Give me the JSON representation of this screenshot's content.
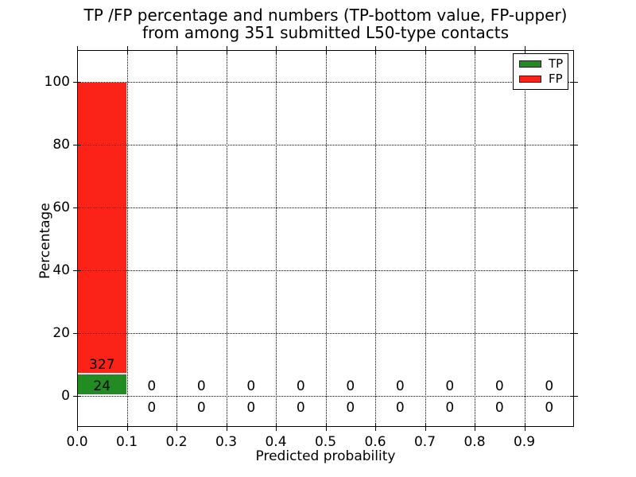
{
  "chart_data": {
    "type": "bar",
    "stacked": true,
    "title_line1": "TP /FP percentage and numbers (TP-bottom value, FP-upper)",
    "title_line2": "from among 351 submitted L50-type contacts",
    "xlabel": "Predicted probability",
    "ylabel": "Percentage",
    "total_contacts": 351,
    "xlim": [
      0.0,
      1.0
    ],
    "ylim": [
      -10,
      110
    ],
    "bin_width": 0.1,
    "x_bin_starts": [
      0.0,
      0.1,
      0.2,
      0.3,
      0.4,
      0.5,
      0.6,
      0.7,
      0.8,
      0.9
    ],
    "series": [
      {
        "name": "TP",
        "color": "#228b22",
        "counts": [
          24,
          0,
          0,
          0,
          0,
          0,
          0,
          0,
          0,
          0
        ],
        "percent_of_total": [
          6.84,
          0,
          0,
          0,
          0,
          0,
          0,
          0,
          0,
          0
        ]
      },
      {
        "name": "FP",
        "color": "#fb2318",
        "counts": [
          327,
          0,
          0,
          0,
          0,
          0,
          0,
          0,
          0,
          0
        ],
        "percent_of_total": [
          93.16,
          0,
          0,
          0,
          0,
          0,
          0,
          0,
          0,
          0
        ]
      }
    ],
    "xtick_values": [
      0.0,
      0.1,
      0.2,
      0.3,
      0.4,
      0.5,
      0.6,
      0.7,
      0.8,
      0.9
    ],
    "xtick_labels": [
      "0.0",
      "0.1",
      "0.2",
      "0.3",
      "0.4",
      "0.5",
      "0.6",
      "0.7",
      "0.8",
      "0.9"
    ],
    "ytick_values": [
      0,
      20,
      40,
      60,
      80,
      100
    ],
    "ytick_labels": [
      "0",
      "20",
      "40",
      "60",
      "80",
      "100"
    ],
    "grid": {
      "style": "dotted",
      "color": "#000000"
    },
    "legend": {
      "position": "upper-right",
      "entries": [
        {
          "label": "TP",
          "color": "#228b22"
        },
        {
          "label": "FP",
          "color": "#fb2318"
        }
      ]
    },
    "axis_color": "#000000",
    "background": "#ffffff"
  }
}
